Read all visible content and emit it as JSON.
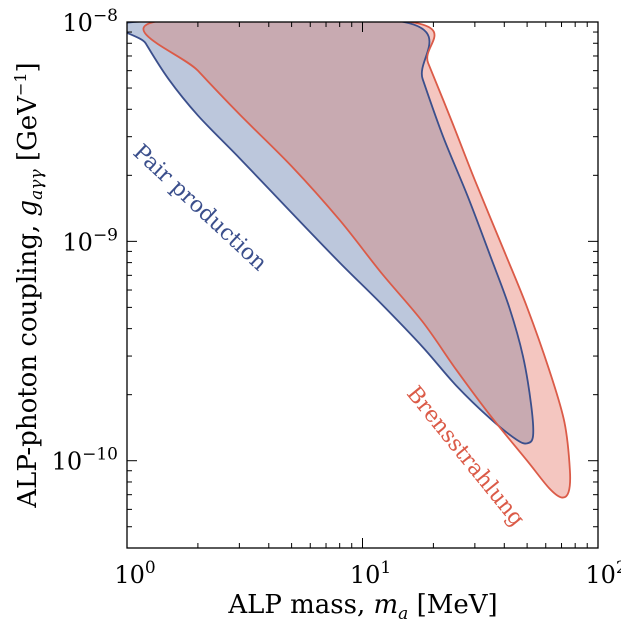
{
  "chart_data": {
    "type": "area",
    "x_scale": "log",
    "y_scale": "log",
    "xlim": [
      1,
      100
    ],
    "ylim": [
      4e-11,
      1e-08
    ],
    "xlabel": "ALP mass, m_a [MeV]",
    "ylabel": "ALP-photon coupling, g_aγγ [GeV⁻¹]",
    "x_ticks": [
      {
        "value": 1,
        "base": "10",
        "exp": "0"
      },
      {
        "value": 10,
        "base": "10",
        "exp": "1"
      },
      {
        "value": 100,
        "base": "10",
        "exp": "2"
      }
    ],
    "y_ticks": [
      {
        "value": 1e-10,
        "base": "10",
        "exp": "−10"
      },
      {
        "value": 1e-09,
        "base": "10",
        "exp": "−9"
      },
      {
        "value": 1e-08,
        "base": "10",
        "exp": "−8"
      }
    ],
    "series": [
      {
        "name": "Pair production",
        "fill": "#bcc7dc",
        "stroke": "#3b4f8c",
        "boundary": [
          [
            1.07,
            1e-08
          ],
          [
            1.2,
            8e-09
          ],
          [
            1.5,
            5.5e-09
          ],
          [
            2.0,
            3.75e-09
          ],
          [
            3.0,
            2.4e-09
          ],
          [
            5.0,
            1.35e-09
          ],
          [
            8.0,
            8e-10
          ],
          [
            12.0,
            5.2e-10
          ],
          [
            18.0,
            3.3e-10
          ],
          [
            25.0,
            2.2e-10
          ],
          [
            35.0,
            1.55e-10
          ],
          [
            45.0,
            1.25e-10
          ],
          [
            50.0,
            1.2e-10
          ],
          [
            53.0,
            1.3e-10
          ],
          [
            52.0,
            1.8e-10
          ],
          [
            48.0,
            3e-10
          ],
          [
            42.0,
            5e-10
          ],
          [
            35.0,
            8.5e-10
          ],
          [
            28.0,
            1.6e-09
          ],
          [
            22.0,
            3e-09
          ],
          [
            18.0,
            5.5e-09
          ],
          [
            15.0,
            1e-08
          ]
        ],
        "label_position": [
          1.95,
          1.35e-09
        ],
        "label_angle": 43,
        "label_color": "#3b4f8c"
      },
      {
        "name": "Brensstrahlung",
        "fill": "#f4c6c0",
        "stroke": "#db5b48",
        "boundary": [
          [
            1.3,
            1e-08
          ],
          [
            2.0,
            6e-09
          ],
          [
            3.0,
            3.8e-09
          ],
          [
            5.0,
            2.2e-09
          ],
          [
            8.0,
            1.25e-09
          ],
          [
            12.0,
            7.2e-10
          ],
          [
            18.0,
            4.3e-10
          ],
          [
            25.0,
            2.6e-10
          ],
          [
            35.0,
            1.6e-10
          ],
          [
            50.0,
            1e-10
          ],
          [
            62.0,
            7.5e-11
          ],
          [
            70.0,
            6.8e-11
          ],
          [
            75.0,
            7.2e-11
          ],
          [
            76.0,
            9e-11
          ],
          [
            72.0,
            1.5e-10
          ],
          [
            62.0,
            2.6e-10
          ],
          [
            50.0,
            5e-10
          ],
          [
            40.0,
            9e-10
          ],
          [
            30.0,
            1.9e-09
          ],
          [
            24.0,
            3.5e-09
          ],
          [
            19.0,
            6.5e-09
          ],
          [
            16.0,
            1e-08
          ]
        ],
        "label_position": [
          26.0,
          1e-10
        ],
        "label_angle": 51,
        "label_color": "#db5b48"
      }
    ],
    "overlap_color": "#c8aab1"
  }
}
